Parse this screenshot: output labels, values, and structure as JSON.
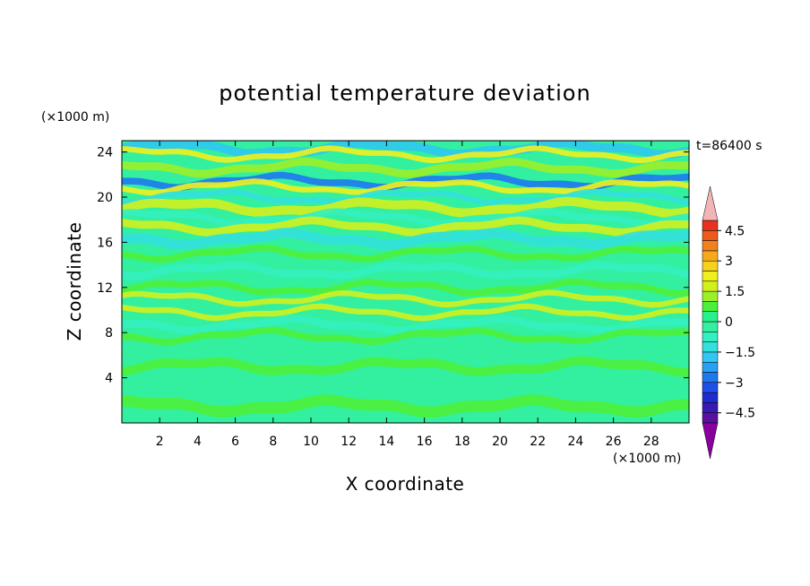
{
  "chart_data": {
    "type": "heatmap",
    "title": "potential temperature deviation",
    "xlabel": "X coordinate",
    "ylabel": "Z coordinate",
    "x_unit": "(×1000 m)",
    "y_unit": "(×1000 m)",
    "time_label": "t=86400 s",
    "xlim": [
      0,
      30
    ],
    "ylim": [
      0,
      25
    ],
    "x_ticks": [
      "2",
      "4",
      "6",
      "8",
      "10",
      "12",
      "14",
      "16",
      "18",
      "20",
      "22",
      "24",
      "26",
      "28"
    ],
    "y_ticks": [
      "4",
      "8",
      "12",
      "16",
      "20",
      "24"
    ],
    "colorbar": {
      "range": [
        -5,
        5
      ],
      "step": 0.5,
      "tick_labels": [
        "4.5",
        "3",
        "1.5",
        "0",
        "−1.5",
        "−3",
        "−4.5"
      ],
      "extend": "both",
      "colors": [
        "#8a009e",
        "#5a0fa0",
        "#3a1ab4",
        "#1f2dd0",
        "#1f4fe6",
        "#1f78f0",
        "#28a0f5",
        "#2fc8f0",
        "#33e0dc",
        "#33f0c0",
        "#33f0a0",
        "#28f08c",
        "#4cf03a",
        "#9cf028",
        "#d2f01e",
        "#f0f01e",
        "#f5d21e",
        "#f5aa1e",
        "#f0821e",
        "#ec5a1e",
        "#e6321e",
        "#f2b4b4"
      ]
    }
  }
}
